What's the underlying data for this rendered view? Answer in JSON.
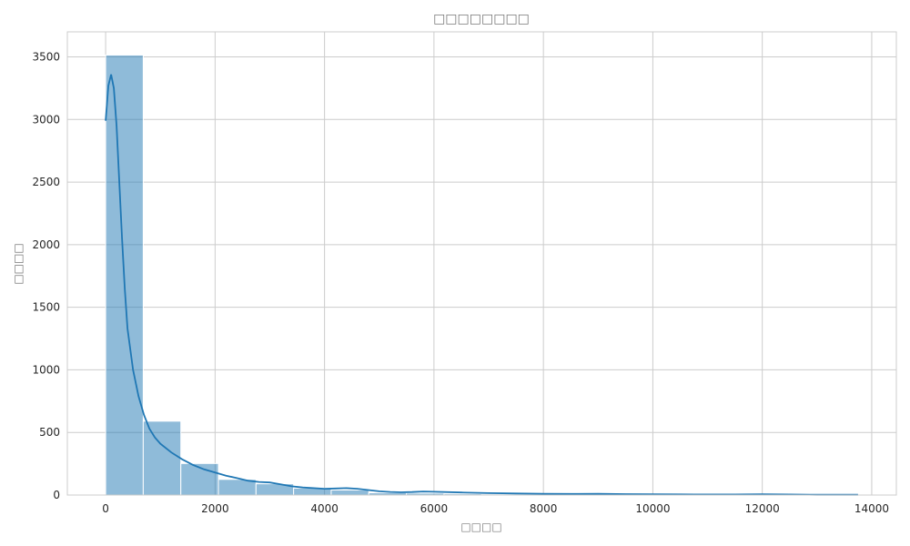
{
  "chart_data": {
    "type": "bar",
    "subtype": "histogram-with-kde",
    "title": "□□□□□□□□",
    "xlabel": "□□□□",
    "ylabel": "□□□□",
    "xlim": [
      -700,
      14450
    ],
    "ylim": [
      0,
      3700
    ],
    "xticks": [
      0,
      2000,
      4000,
      6000,
      8000,
      10000,
      12000,
      14000
    ],
    "yticks": [
      0,
      500,
      1000,
      1500,
      2000,
      2500,
      3000,
      3500
    ],
    "grid": true,
    "bar_color": "#1f77b4",
    "bin_start": 0,
    "bin_width": 687,
    "values": [
      3515,
      590,
      252,
      125,
      90,
      55,
      40,
      18,
      15,
      10,
      7,
      5,
      4,
      3,
      3,
      2,
      2,
      1,
      2,
      1
    ],
    "kde": {
      "x": [
        0,
        50,
        100,
        150,
        200,
        250,
        300,
        350,
        400,
        500,
        600,
        700,
        800,
        900,
        1000,
        1200,
        1400,
        1600,
        1800,
        2000,
        2200,
        2400,
        2600,
        2800,
        3000,
        3200,
        3400,
        3600,
        3800,
        4000,
        4200,
        4400,
        4600,
        4800,
        5000,
        5200,
        5400,
        5600,
        5800,
        6000,
        6500,
        7000,
        7500,
        8000,
        8500,
        9000,
        9500,
        10000,
        10500,
        11000,
        11500,
        12000,
        12500,
        13000,
        13500,
        13750
      ],
      "y": [
        2990,
        3270,
        3360,
        3250,
        2950,
        2500,
        2050,
        1650,
        1330,
        1000,
        790,
        640,
        530,
        460,
        410,
        340,
        285,
        240,
        205,
        180,
        155,
        135,
        115,
        105,
        100,
        85,
        70,
        60,
        55,
        50,
        52,
        55,
        50,
        40,
        30,
        25,
        22,
        24,
        28,
        26,
        20,
        15,
        12,
        10,
        9,
        10,
        7,
        6,
        5,
        4,
        4,
        6,
        4,
        2,
        2,
        2
      ]
    }
  }
}
